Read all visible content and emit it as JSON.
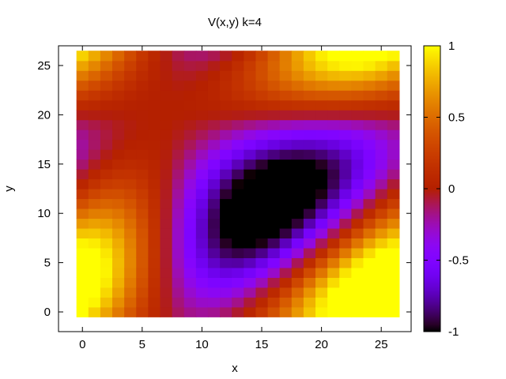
{
  "chart_data": {
    "type": "heatmap",
    "title": "V(x,y) k=4",
    "xlabel": "x",
    "ylabel": "y",
    "x_range": [
      -2,
      27.5
    ],
    "y_range": [
      -2,
      27
    ],
    "x_ticks": [
      "0",
      "5",
      "10",
      "15",
      "20",
      "25"
    ],
    "y_ticks": [
      "0",
      "5",
      "10",
      "15",
      "20",
      "25"
    ],
    "grid_size": 27,
    "value_range": [
      -1,
      1
    ],
    "colorbar_ticks": [
      "-1",
      "-0.5",
      "0",
      "0.5",
      "1"
    ],
    "palette": "gnuplot pm3d default (black-blue-purple-red-orange-yellow)",
    "grid": false,
    "legend": "colorbar on right"
  }
}
